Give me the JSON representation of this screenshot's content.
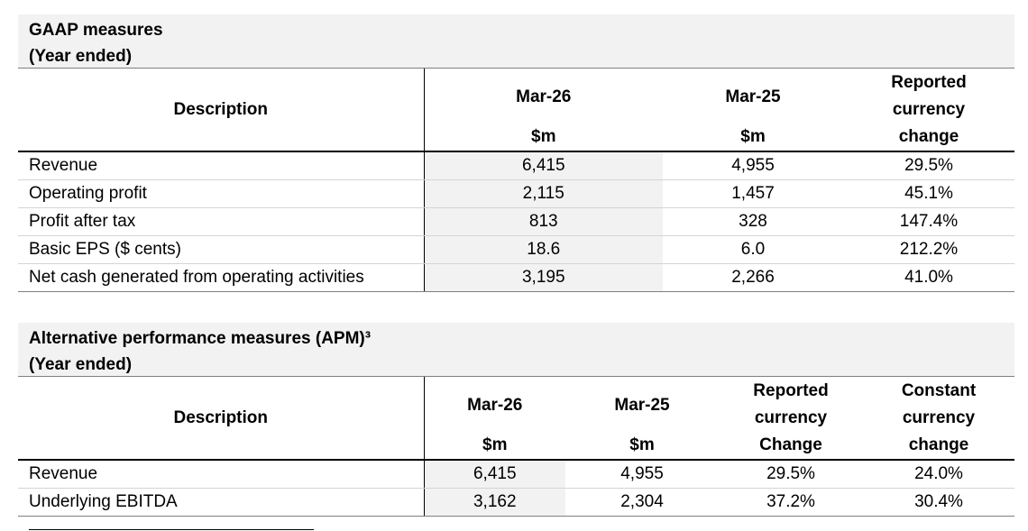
{
  "gaap": {
    "heading": [
      "GAAP measures",
      "(Year ended)"
    ],
    "header": {
      "description": "Description",
      "col1": [
        "Mar-26",
        "$m"
      ],
      "col2": [
        "Mar-25",
        "$m"
      ],
      "col3": [
        "Reported",
        "currency",
        "change"
      ]
    },
    "rows": [
      {
        "label": "Revenue",
        "v1": "6,415",
        "v2": "4,955",
        "v3": "29.5%"
      },
      {
        "label": "Operating profit",
        "v1": "2,115",
        "v2": "1,457",
        "v3": "45.1%"
      },
      {
        "label": "Profit after tax",
        "v1": "813",
        "v2": "328",
        "v3": "147.4%"
      },
      {
        "label": "Basic EPS ($ cents)",
        "v1": "18.6",
        "v2": "6.0",
        "v3": "212.2%"
      },
      {
        "label": "Net cash generated from operating activities",
        "v1": "3,195",
        "v2": "2,266",
        "v3": "41.0%"
      }
    ]
  },
  "apm": {
    "heading": [
      "Alternative performance measures (APM)³",
      "(Year ended)"
    ],
    "header": {
      "description": "Description",
      "col1": [
        "Mar-26",
        "$m"
      ],
      "col2": [
        "Mar-25",
        "$m"
      ],
      "col3": [
        "Reported",
        "currency",
        "Change"
      ],
      "col4": [
        "Constant",
        "currency",
        "change"
      ]
    },
    "rows": [
      {
        "label": "Revenue",
        "v1": "6,415",
        "v2": "4,955",
        "v3": "29.5%",
        "v4": "24.0%"
      },
      {
        "label": "Underlying EBITDA",
        "v1": "3,162",
        "v2": "2,304",
        "v3": "37.2%",
        "v4": "30.4%"
      }
    ]
  }
}
